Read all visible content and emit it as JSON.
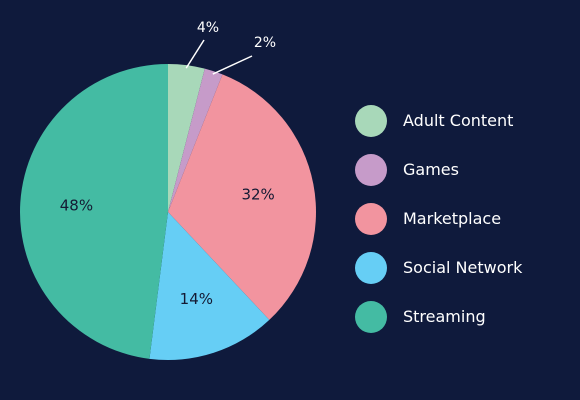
{
  "chart_data": {
    "type": "pie",
    "categories": [
      "Adult Content",
      "Games",
      "Marketplace",
      "Social Network",
      "Streaming"
    ],
    "values": [
      4,
      2,
      32,
      14,
      48
    ],
    "labels": [
      "4%",
      "2%",
      "32%",
      "14%",
      "48%"
    ],
    "colors": [
      "#a8d8b9",
      "#c69bc9",
      "#f2949f",
      "#66cef5",
      "#44bba3"
    ],
    "legend_position": "right",
    "start_angle": "top, clockwise"
  }
}
